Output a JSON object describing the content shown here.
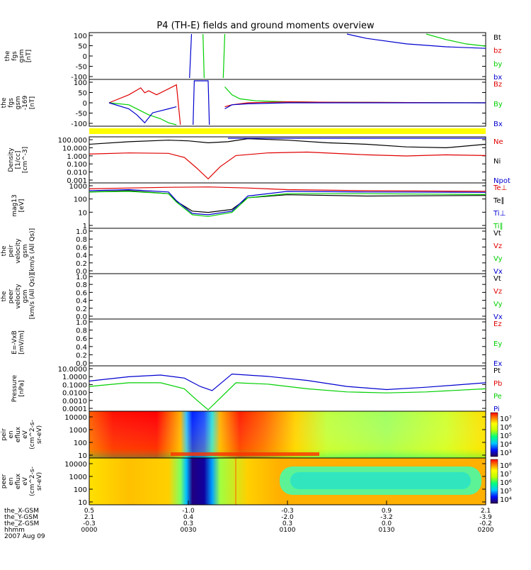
{
  "title": "P4 (TH-E) fields and ground moments overview",
  "colors": {
    "black": "#000000",
    "red": "#e00000",
    "green": "#00d000",
    "blue": "#0000d0",
    "yellow": "#ffff00"
  },
  "chart_data": [
    {
      "id": "fgs",
      "type": "line",
      "ylabel": [
        "the",
        "fgs",
        "gsm",
        "[nT]"
      ],
      "yticks": [
        "100",
        "50",
        "0",
        "-50",
        "-100"
      ],
      "ylim": [
        -100,
        100
      ],
      "legend": [
        {
          "text": "Bt",
          "color": "black"
        },
        {
          "text": "bz",
          "color": "red"
        },
        {
          "text": "by",
          "color": "green"
        },
        {
          "text": "bx",
          "color": "blue"
        }
      ],
      "series": [
        {
          "color": "blue",
          "x": [
            0.65,
            0.7,
            0.8,
            0.9,
            1.0
          ],
          "y": [
            100,
            80,
            55,
            42,
            35
          ]
        },
        {
          "color": "green",
          "x": [
            0.85,
            0.9,
            0.95,
            1.0
          ],
          "y": [
            100,
            75,
            55,
            45
          ]
        },
        {
          "color": "blue",
          "x": [
            0.253,
            0.258
          ],
          "y": [
            -100,
            100
          ]
        },
        {
          "color": "green",
          "x": [
            0.287,
            0.29
          ],
          "y": [
            100,
            -100
          ]
        },
        {
          "color": "green",
          "x": [
            0.338,
            0.342
          ],
          "y": [
            -100,
            100
          ]
        }
      ]
    },
    {
      "id": "fgs2",
      "type": "line",
      "ylabel": [
        "the",
        "fgs",
        "gsm",
        "-169",
        "[nT]"
      ],
      "yticks": [
        "100",
        "50",
        "0",
        "-50",
        "-100"
      ],
      "ylim": [
        -110,
        110
      ],
      "legend": [
        {
          "text": "Bz",
          "color": "red"
        },
        {
          "text": "By",
          "color": "green"
        },
        {
          "text": "Bx",
          "color": "blue"
        }
      ],
      "series": [
        {
          "color": "red",
          "x": [
            0.05,
            0.1,
            0.13,
            0.14,
            0.15,
            0.17,
            0.2,
            0.22,
            0.23
          ],
          "y": [
            0,
            40,
            75,
            50,
            60,
            40,
            70,
            90,
            -110
          ]
        },
        {
          "color": "green",
          "x": [
            0.05,
            0.1,
            0.13,
            0.15,
            0.18,
            0.2,
            0.22
          ],
          "y": [
            0,
            -10,
            -40,
            -60,
            -80,
            -100,
            -110
          ]
        },
        {
          "color": "blue",
          "x": [
            0.05,
            0.1,
            0.12,
            0.14,
            0.16,
            0.2,
            0.22
          ],
          "y": [
            0,
            -30,
            -60,
            -100,
            -50,
            -30,
            -20
          ]
        },
        {
          "color": "blue",
          "x": [
            0.262,
            0.265,
            0.3,
            0.303
          ],
          "y": [
            -110,
            110,
            110,
            -110
          ]
        },
        {
          "color": "green",
          "x": [
            0.342,
            0.36,
            0.38,
            0.42,
            0.5,
            0.6,
            0.7,
            1.0
          ],
          "y": [
            80,
            40,
            20,
            10,
            5,
            3,
            2,
            0
          ]
        },
        {
          "color": "red",
          "x": [
            0.342,
            0.36,
            0.4,
            0.5,
            0.6,
            0.7,
            1.0
          ],
          "y": [
            -20,
            -10,
            0,
            5,
            3,
            2,
            0
          ]
        },
        {
          "color": "blue",
          "x": [
            0.342,
            0.36,
            0.4,
            0.5,
            0.6,
            1.0
          ],
          "y": [
            -30,
            -10,
            -5,
            0,
            0,
            0
          ]
        }
      ]
    },
    {
      "id": "density",
      "type": "line",
      "log": true,
      "ylabel": [
        "Density",
        "[1/cc]",
        "[cm^-3]"
      ],
      "yticks": [
        "100.000",
        "10.000",
        "1.000",
        "0.100",
        "0.010",
        "0.001"
      ],
      "ylim": [
        0.001,
        100
      ],
      "legend": [
        {
          "text": "Ne",
          "color": "red"
        },
        {
          "text": "Ni",
          "color": "black"
        },
        {
          "text": "Npot",
          "color": "blue"
        }
      ],
      "series": [
        {
          "color": "black",
          "x": [
            0,
            0.1,
            0.2,
            0.25,
            0.3,
            0.35,
            0.4,
            0.5,
            0.6,
            0.7,
            0.8,
            0.9,
            1.0
          ],
          "y": [
            20,
            40,
            60,
            50,
            30,
            40,
            90,
            60,
            30,
            20,
            10,
            8,
            20
          ]
        },
        {
          "color": "red",
          "x": [
            0,
            0.1,
            0.2,
            0.24,
            0.27,
            0.3,
            0.33,
            0.37,
            0.45,
            0.55,
            0.7,
            0.8,
            0.9,
            1.0
          ],
          "y": [
            1.5,
            2,
            1.8,
            0.6,
            0.04,
            0.002,
            0.05,
            1,
            2,
            2.5,
            1.2,
            0.9,
            1.2,
            1.0
          ]
        },
        {
          "color": "blue",
          "x": [
            0.35,
            0.5,
            0.7,
            0.9,
            1.0
          ],
          "y": [
            100,
            100,
            100,
            100,
            100
          ]
        }
      ]
    },
    {
      "id": "temp",
      "type": "line",
      "log": true,
      "ylabel": [
        "mag13",
        "[eV]"
      ],
      "yticks": [
        "1000",
        "100",
        "10",
        "1"
      ],
      "ylim": [
        1,
        1500
      ],
      "legend": [
        {
          "text": "Te⊥",
          "color": "red"
        },
        {
          "text": "Te∥",
          "color": "black"
        },
        {
          "text": "Ti⊥",
          "color": "blue"
        },
        {
          "text": "Ti∥",
          "color": "green"
        }
      ],
      "series": [
        {
          "color": "red",
          "x": [
            0,
            0.1,
            0.2,
            0.3,
            0.4,
            0.5,
            0.7,
            1.0
          ],
          "y": [
            700,
            800,
            900,
            950,
            800,
            600,
            500,
            450
          ]
        },
        {
          "color": "black",
          "x": [
            0,
            0.1,
            0.2,
            0.22,
            0.26,
            0.3,
            0.36,
            0.4,
            0.5,
            0.7,
            1.0
          ],
          "y": [
            400,
            500,
            300,
            80,
            15,
            12,
            20,
            150,
            250,
            200,
            220
          ]
        },
        {
          "color": "blue",
          "x": [
            0,
            0.1,
            0.2,
            0.22,
            0.26,
            0.3,
            0.36,
            0.4,
            0.5,
            0.7,
            1.0
          ],
          "y": [
            500,
            600,
            400,
            90,
            10,
            8,
            15,
            200,
            450,
            400,
            380
          ]
        },
        {
          "color": "green",
          "x": [
            0,
            0.1,
            0.2,
            0.22,
            0.26,
            0.3,
            0.36,
            0.4,
            0.5,
            0.7,
            1.0
          ],
          "y": [
            400,
            450,
            300,
            70,
            8,
            6,
            12,
            150,
            300,
            300,
            260
          ]
        }
      ]
    },
    {
      "id": "peir_vel",
      "type": "line",
      "ylabel": [
        "the",
        "peir",
        "velocity",
        "gsm",
        "[km/s (All Qs)]"
      ],
      "yticks": [
        "1.0",
        "0.8",
        "0.6",
        "0.4",
        "0.2",
        "0.0"
      ],
      "ylim": [
        0,
        1
      ],
      "legend": [
        {
          "text": "Vt",
          "color": "black"
        },
        {
          "text": "Vz",
          "color": "red"
        },
        {
          "text": "Vy",
          "color": "green"
        },
        {
          "text": "Vx",
          "color": "blue"
        }
      ],
      "series": []
    },
    {
      "id": "peer_vel",
      "type": "line",
      "ylabel": [
        "the",
        "peer",
        "velocity",
        "gsm",
        "[km/s (All Qs)]"
      ],
      "yticks": [
        "1.0",
        "0.8",
        "0.6",
        "0.4",
        "0.2",
        "0.0"
      ],
      "ylim": [
        0,
        1
      ],
      "legend": [
        {
          "text": "Vt",
          "color": "black"
        },
        {
          "text": "Vz",
          "color": "red"
        },
        {
          "text": "Vy",
          "color": "green"
        },
        {
          "text": "Vx",
          "color": "blue"
        }
      ],
      "series": []
    },
    {
      "id": "efield",
      "type": "line",
      "ylabel": [
        "E=-VxB",
        "[mV/m]"
      ],
      "yticks": [
        "1.0",
        "0.8",
        "0.6",
        "0.4",
        "0.2",
        "0.0"
      ],
      "ylim": [
        0,
        1
      ],
      "legend": [
        {
          "text": "Ez",
          "color": "red"
        },
        {
          "text": "Ey",
          "color": "green"
        },
        {
          "text": "Ex",
          "color": "blue"
        }
      ],
      "series": []
    },
    {
      "id": "pressure",
      "type": "line",
      "log": true,
      "ylabel": [
        "Pressure",
        "[nPa]"
      ],
      "yticks": [
        "10.0000",
        "1.0000",
        "0.1000",
        "0.0100",
        "0.0010",
        "0.0001"
      ],
      "ylim": [
        0.0001,
        30
      ],
      "legend": [
        {
          "text": "Pt",
          "color": "black"
        },
        {
          "text": "Pb",
          "color": "red"
        },
        {
          "text": "Pe",
          "color": "green"
        },
        {
          "text": "Pi",
          "color": "blue"
        }
      ],
      "series": [
        {
          "color": "blue",
          "x": [
            0,
            0.1,
            0.18,
            0.24,
            0.28,
            0.31,
            0.36,
            0.45,
            0.55,
            0.65,
            0.75,
            0.85,
            1.0
          ],
          "y": [
            0.5,
            1.8,
            3,
            1.2,
            0.1,
            0.03,
            4,
            2,
            0.6,
            0.1,
            0.04,
            0.08,
            0.3
          ]
        },
        {
          "color": "green",
          "x": [
            0,
            0.1,
            0.18,
            0.24,
            0.27,
            0.3,
            0.33,
            0.37,
            0.45,
            0.55,
            0.65,
            0.75,
            0.85,
            1.0
          ],
          "y": [
            0.1,
            0.3,
            0.3,
            0.05,
            0.002,
            0.0001,
            0.003,
            0.3,
            0.2,
            0.05,
            0.02,
            0.015,
            0.02,
            0.05
          ]
        }
      ]
    },
    {
      "id": "peir_spec",
      "type": "heatmap",
      "ylabel": [
        "the",
        "peir",
        "en",
        "eflux",
        "eV",
        "(cm^2-s-",
        "sr-eV)"
      ],
      "yticks": [
        "10000",
        "1000",
        "100",
        "10"
      ],
      "cbar_labels": [
        "10⁷",
        "10⁶",
        "10⁵",
        "10⁴",
        "10³"
      ]
    },
    {
      "id": "peer_spec",
      "type": "heatmap",
      "ylabel": [
        "the",
        "peer",
        "en",
        "eflux",
        "eV",
        "(cm^2-s-",
        "sr-eV)"
      ],
      "yticks": [
        "10000",
        "1000",
        "100",
        "10"
      ],
      "cbar_labels": [
        "10⁸",
        "10⁷",
        "10⁶",
        "10⁵",
        "10⁴"
      ]
    }
  ],
  "xaxis": {
    "rows": [
      {
        "label": "the_X-GSM",
        "values": [
          "0.5",
          "-1.0",
          "-0.3",
          "0.9",
          "2.1"
        ]
      },
      {
        "label": "the_Y-GSM",
        "values": [
          "2.1",
          "0.4",
          "-2.0",
          "-3.2",
          "-3.9"
        ]
      },
      {
        "label": "the_Z-GSM",
        "values": [
          "-0.3",
          "0.3",
          "0.3",
          "0.0",
          "-0.2"
        ]
      },
      {
        "label": "hhmm",
        "values": [
          "0000",
          "0030",
          "0100",
          "0130",
          "0200"
        ]
      }
    ],
    "date": "2007 Aug 09"
  }
}
